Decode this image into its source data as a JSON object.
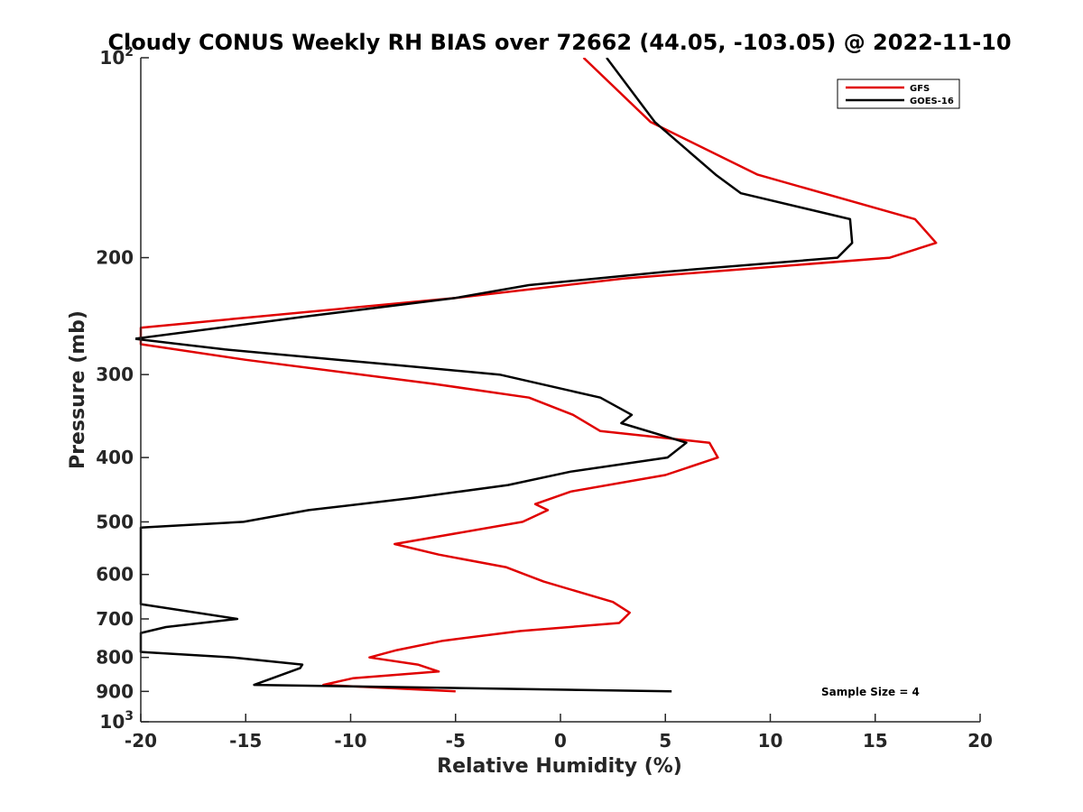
{
  "chart_data": {
    "type": "line",
    "title": "Cloudy CONUS Weekly RH BIAS over 72662 (44.05, -103.05) @ 2022-11-10",
    "xlabel": "Relative Humidity (%)",
    "ylabel": "Pressure (mb)",
    "xlim": [
      -20,
      20
    ],
    "ylim": [
      100,
      1000
    ],
    "y_scale": "log",
    "y_reversed": true,
    "grid": false,
    "legend_position": "top-right",
    "x_ticks": [
      "-20",
      "-15",
      "-10",
      "-5",
      "0",
      "5",
      "10",
      "15",
      "20"
    ],
    "y_ticks": [
      {
        "value": 100,
        "base": "10",
        "exp": "2"
      },
      {
        "value": 200,
        "label": "200"
      },
      {
        "value": 300,
        "label": "300"
      },
      {
        "value": 400,
        "label": "400"
      },
      {
        "value": 500,
        "label": "500"
      },
      {
        "value": 600,
        "label": "600"
      },
      {
        "value": 700,
        "label": "700"
      },
      {
        "value": 800,
        "label": "800"
      },
      {
        "value": 900,
        "label": "900"
      },
      {
        "value": 1000,
        "base": "10",
        "exp": "3"
      }
    ],
    "annotation": "Sample Size = 4",
    "series": [
      {
        "name": "GFS",
        "color": "#e00000",
        "points": [
          [
            1.1,
            100
          ],
          [
            4.3,
            125
          ],
          [
            9.4,
            150
          ],
          [
            16.9,
            175
          ],
          [
            17.9,
            190
          ],
          [
            15.7,
            200
          ],
          [
            3.0,
            215
          ],
          [
            -5.0,
            230
          ],
          [
            -20.0,
            255
          ],
          [
            -20.0,
            270
          ],
          [
            -15.0,
            285
          ],
          [
            -6.0,
            310
          ],
          [
            -1.5,
            325
          ],
          [
            0.6,
            345
          ],
          [
            1.9,
            365
          ],
          [
            7.1,
            380
          ],
          [
            7.5,
            400
          ],
          [
            5.0,
            425
          ],
          [
            0.5,
            450
          ],
          [
            -1.2,
            470
          ],
          [
            -0.6,
            480
          ],
          [
            -1.8,
            500
          ],
          [
            -7.9,
            540
          ],
          [
            -5.8,
            560
          ],
          [
            -2.6,
            585
          ],
          [
            -0.8,
            615
          ],
          [
            2.5,
            660
          ],
          [
            3.3,
            685
          ],
          [
            3.0,
            700
          ],
          [
            2.8,
            710
          ],
          [
            -1.9,
            730
          ],
          [
            -5.6,
            755
          ],
          [
            -7.8,
            780
          ],
          [
            -9.1,
            800
          ],
          [
            -6.8,
            820
          ],
          [
            -5.8,
            840
          ],
          [
            -9.9,
            860
          ],
          [
            -11.3,
            880
          ],
          [
            -5.0,
            900
          ]
        ]
      },
      {
        "name": "GOES-16",
        "color": "#000000",
        "points": [
          [
            2.2,
            100
          ],
          [
            4.5,
            125
          ],
          [
            7.4,
            150
          ],
          [
            8.6,
            160
          ],
          [
            13.8,
            175
          ],
          [
            13.9,
            190
          ],
          [
            13.2,
            200
          ],
          [
            5.0,
            210
          ],
          [
            -1.5,
            220
          ],
          [
            -5.0,
            230
          ],
          [
            -12.0,
            245
          ],
          [
            -20.3,
            265
          ],
          [
            -16.0,
            275
          ],
          [
            -8.0,
            290
          ],
          [
            -2.9,
            300
          ],
          [
            1.9,
            325
          ],
          [
            3.4,
            345
          ],
          [
            2.9,
            355
          ],
          [
            6.0,
            380
          ],
          [
            5.1,
            400
          ],
          [
            0.5,
            420
          ],
          [
            -2.5,
            440
          ],
          [
            -7.0,
            460
          ],
          [
            -12.0,
            480
          ],
          [
            -15.1,
            500
          ],
          [
            -20.0,
            510
          ],
          [
            -20.0,
            665
          ],
          [
            -15.4,
            700
          ],
          [
            -18.8,
            720
          ],
          [
            -20.0,
            735
          ],
          [
            -20.0,
            785
          ],
          [
            -15.6,
            800
          ],
          [
            -12.3,
            820
          ],
          [
            -12.4,
            830
          ],
          [
            -14.6,
            880
          ],
          [
            5.3,
            900
          ]
        ]
      }
    ]
  }
}
